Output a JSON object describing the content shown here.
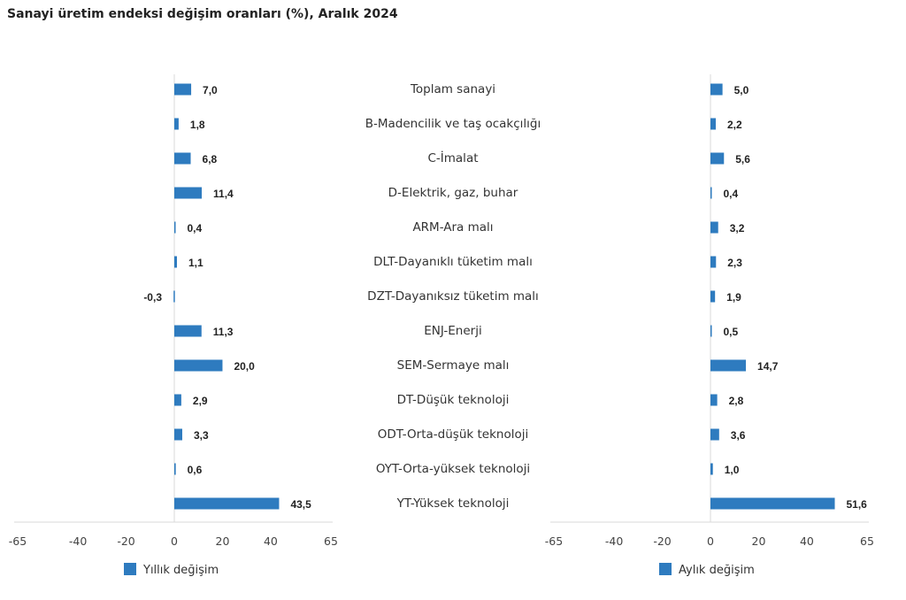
{
  "chart_data": {
    "type": "bar",
    "title": "Sanayi üretim endeksi değişim oranları (%), Aralık 2024",
    "categories": [
      "Toplam sanayi",
      "B-Madencilik ve taş ocakçılığı",
      "C-İmalat",
      "D-Elektrik, gaz, buhar",
      "ARM-Ara malı",
      "DLT-Dayanıklı tüketim malı",
      "DZT-Dayanıksız tüketim malı",
      "ENJ-Enerji",
      "SEM-Sermaye malı",
      "DT-Düşük teknoloji",
      "ODT-Orta-düşük teknoloji",
      "OYT-Orta-yüksek teknoloji",
      "YT-Yüksek teknoloji"
    ],
    "series": [
      {
        "name": "Yıllık değişim",
        "values": [
          7.0,
          1.8,
          6.8,
          11.4,
          0.4,
          1.1,
          -0.3,
          11.3,
          20.0,
          2.9,
          3.3,
          0.6,
          43.5
        ],
        "labels": [
          "7,0",
          "1,8",
          "6,8",
          "11,4",
          "0,4",
          "1,1",
          "-0,3",
          "11,3",
          "20,0",
          "2,9",
          "3,3",
          "0,6",
          "43,5"
        ]
      },
      {
        "name": "Aylık değişim",
        "values": [
          5.0,
          2.2,
          5.6,
          0.4,
          3.2,
          2.3,
          1.9,
          0.5,
          14.7,
          2.8,
          3.6,
          1.0,
          51.6
        ],
        "labels": [
          "5,0",
          "2,2",
          "5,6",
          "0,4",
          "3,2",
          "2,3",
          "1,9",
          "0,5",
          "14,7",
          "2,8",
          "3,6",
          "1,0",
          "51,6"
        ]
      }
    ],
    "xlim": [
      -65,
      65
    ],
    "xticks": [
      "-65",
      "-40",
      "-20",
      "0",
      "20",
      "40",
      "65"
    ],
    "xtick_values": [
      -65,
      -40,
      -20,
      0,
      20,
      40,
      65
    ],
    "orientation": "horizontal",
    "legend": "bottom",
    "grid": false,
    "color": "#2e7bbf"
  }
}
